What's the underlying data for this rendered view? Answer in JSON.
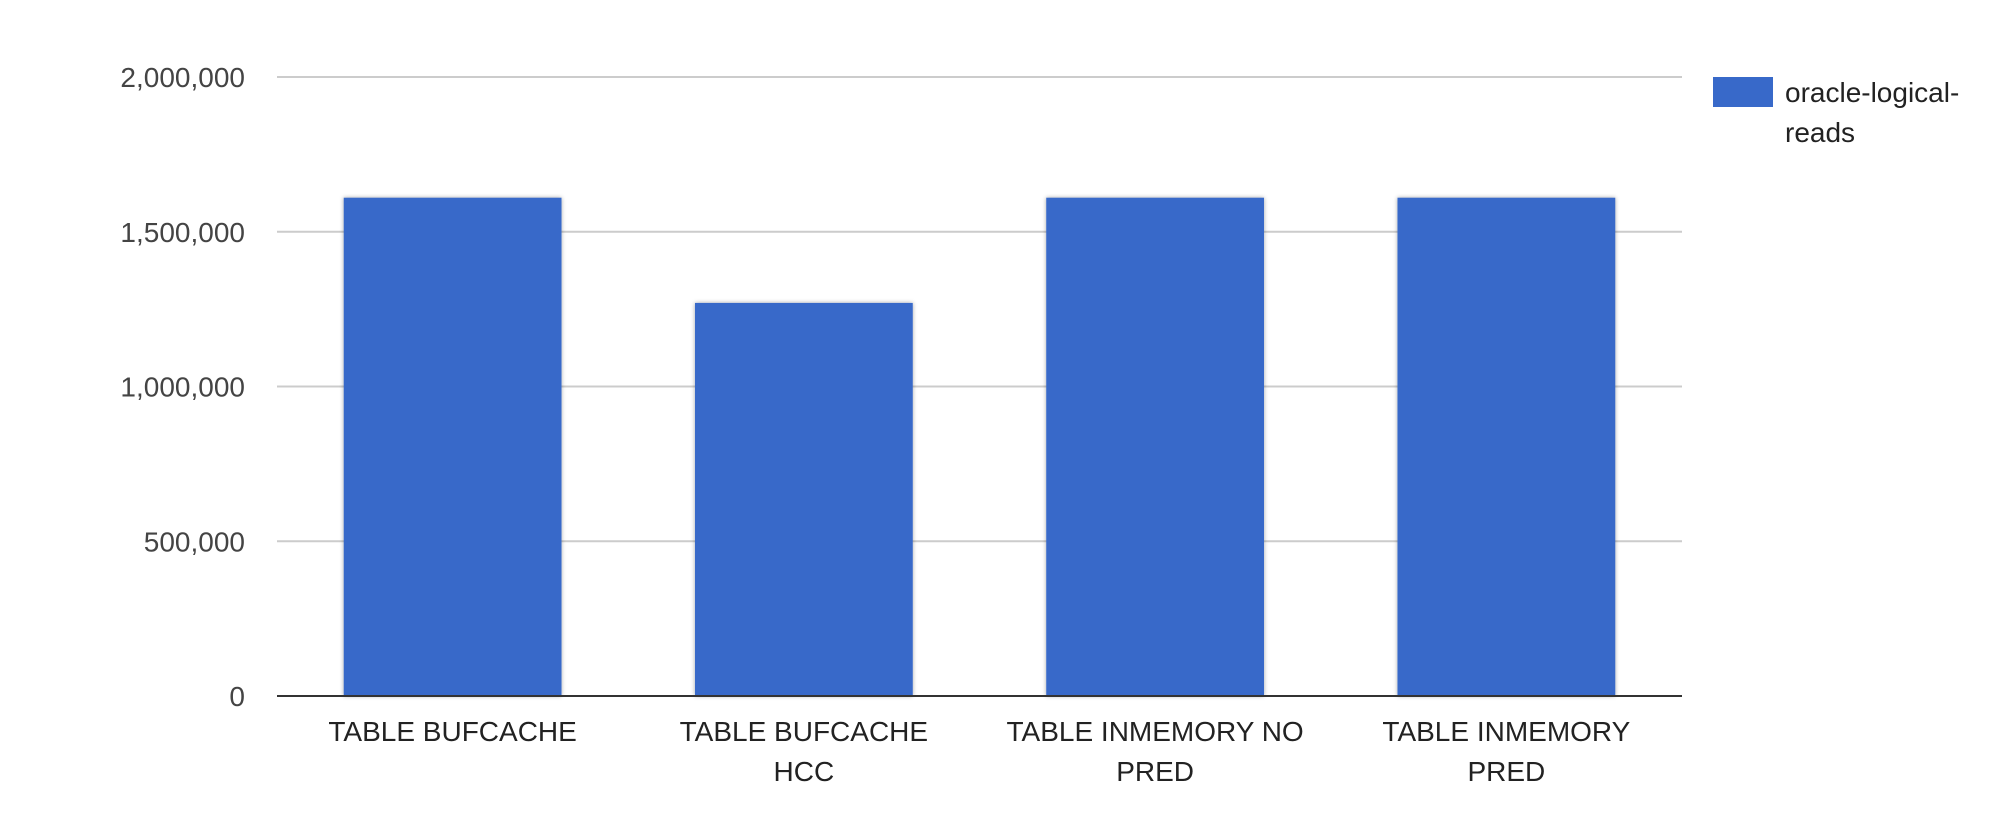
{
  "chart_data": {
    "type": "bar",
    "title": "",
    "xlabel": "",
    "ylabel": "",
    "categories": [
      [
        "TABLE BUFCACHE"
      ],
      [
        "TABLE BUFCACHE",
        "HCC"
      ],
      [
        "TABLE INMEMORY NO",
        "PRED"
      ],
      [
        "TABLE INMEMORY",
        "PRED"
      ]
    ],
    "series": [
      {
        "name": "oracle-logical-reads",
        "name_lines": [
          "oracle-logical-",
          "reads"
        ],
        "color": "#3869C9",
        "values": [
          1610000,
          1270000,
          1610000,
          1610000
        ]
      }
    ],
    "ylim": [
      0,
      2000000
    ],
    "yticks": [
      {
        "value": 0,
        "label": "0"
      },
      {
        "value": 500000,
        "label": "500,000"
      },
      {
        "value": 1000000,
        "label": "1,000,000"
      },
      {
        "value": 1500000,
        "label": "1,500,000"
      },
      {
        "value": 2000000,
        "label": "2,000,000"
      }
    ],
    "grid": true,
    "legend_position": "top-right"
  }
}
